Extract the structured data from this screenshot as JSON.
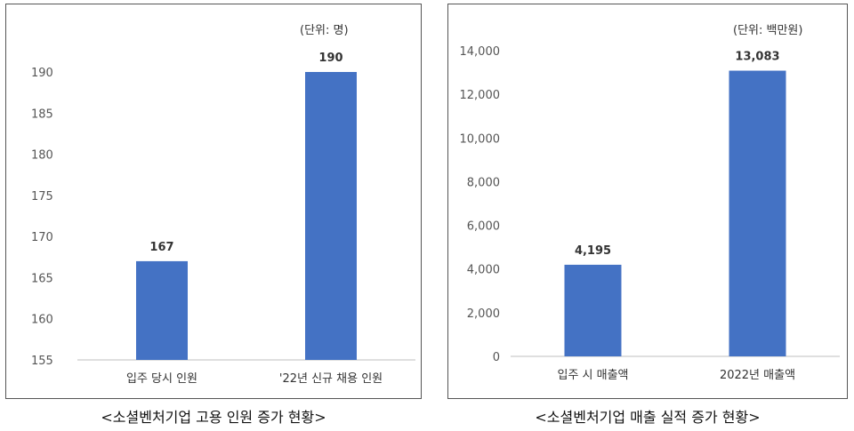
{
  "chart_data": [
    {
      "type": "bar",
      "unit_note": "(단위: 명)",
      "caption": "<소셜벤처기업 고용 인원 증가 현황>",
      "categories": [
        "입주 당시 인원",
        "'22년 신규 채용 인원"
      ],
      "values": [
        167,
        190
      ],
      "data_labels": [
        "167",
        "190"
      ],
      "ylim": [
        155,
        190
      ],
      "yticks": [
        155,
        160,
        165,
        170,
        175,
        180,
        185,
        190
      ],
      "ytick_labels": [
        "155",
        "160",
        "165",
        "170",
        "175",
        "180",
        "185",
        "190"
      ],
      "grid": false,
      "bar_color": "#4472c4"
    },
    {
      "type": "bar",
      "unit_note": "(단위: 백만원)",
      "caption": "<소셜벤처기업 매출 실적 증가 현황>",
      "categories": [
        "입주 시 매출액",
        "2022년 매출액"
      ],
      "values": [
        4195,
        13083
      ],
      "data_labels": [
        "4,195",
        "13,083"
      ],
      "ylim": [
        0,
        14000
      ],
      "yticks": [
        0,
        2000,
        4000,
        6000,
        8000,
        10000,
        12000,
        14000
      ],
      "ytick_labels": [
        "0",
        "2,000",
        "4,000",
        "6,000",
        "8,000",
        "10,000",
        "12,000",
        "14,000"
      ],
      "grid": false,
      "bar_color": "#4472c4"
    }
  ]
}
